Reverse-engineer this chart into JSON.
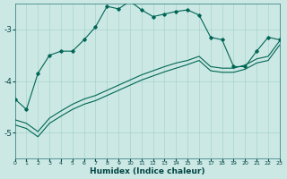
{
  "xlabel": "Humidex (Indice chaleur)",
  "background_color": "#cce8e4",
  "grid_color": "#a8d4cc",
  "line_color": "#006655",
  "xlim": [
    0,
    23
  ],
  "ylim": [
    -5.5,
    -2.5
  ],
  "yticks": [
    -5,
    -4,
    -3
  ],
  "xticks": [
    0,
    1,
    2,
    3,
    4,
    5,
    6,
    7,
    8,
    9,
    10,
    11,
    12,
    13,
    14,
    15,
    16,
    17,
    18,
    19,
    20,
    21,
    22,
    23
  ],
  "upper_x": [
    0,
    1,
    2,
    3,
    4,
    5,
    6,
    7,
    8,
    9,
    10,
    11,
    12,
    13,
    14,
    15,
    16,
    17,
    18,
    19,
    20,
    21,
    22,
    23
  ],
  "upper_y": [
    -4.35,
    -4.55,
    -3.85,
    -3.5,
    -3.42,
    -3.42,
    -3.2,
    -2.95,
    -2.55,
    -2.6,
    -2.45,
    -2.62,
    -2.75,
    -2.7,
    -2.65,
    -2.62,
    -2.72,
    -3.15,
    -3.2,
    -3.72,
    -3.72,
    -3.42,
    -3.15,
    -3.2
  ],
  "lower1_x": [
    0,
    1,
    2,
    3,
    4,
    5,
    6,
    7,
    8,
    9,
    10,
    11,
    12,
    13,
    14,
    15,
    16,
    17,
    18,
    19,
    20,
    21,
    22,
    23
  ],
  "lower1_y": [
    -4.75,
    -4.82,
    -4.98,
    -4.72,
    -4.58,
    -4.45,
    -4.35,
    -4.28,
    -4.18,
    -4.08,
    -3.98,
    -3.88,
    -3.8,
    -3.72,
    -3.65,
    -3.6,
    -3.52,
    -3.72,
    -3.75,
    -3.75,
    -3.69,
    -3.57,
    -3.52,
    -3.22
  ],
  "lower2_x": [
    0,
    1,
    2,
    3,
    4,
    5,
    6,
    7,
    8,
    9,
    10,
    11,
    12,
    13,
    14,
    15,
    16,
    17,
    18,
    19,
    20,
    21,
    22,
    23
  ],
  "lower2_y": [
    -4.85,
    -4.92,
    -5.08,
    -4.82,
    -4.68,
    -4.55,
    -4.45,
    -4.38,
    -4.28,
    -4.18,
    -4.08,
    -3.98,
    -3.9,
    -3.82,
    -3.75,
    -3.68,
    -3.6,
    -3.8,
    -3.83,
    -3.83,
    -3.77,
    -3.65,
    -3.6,
    -3.3
  ]
}
